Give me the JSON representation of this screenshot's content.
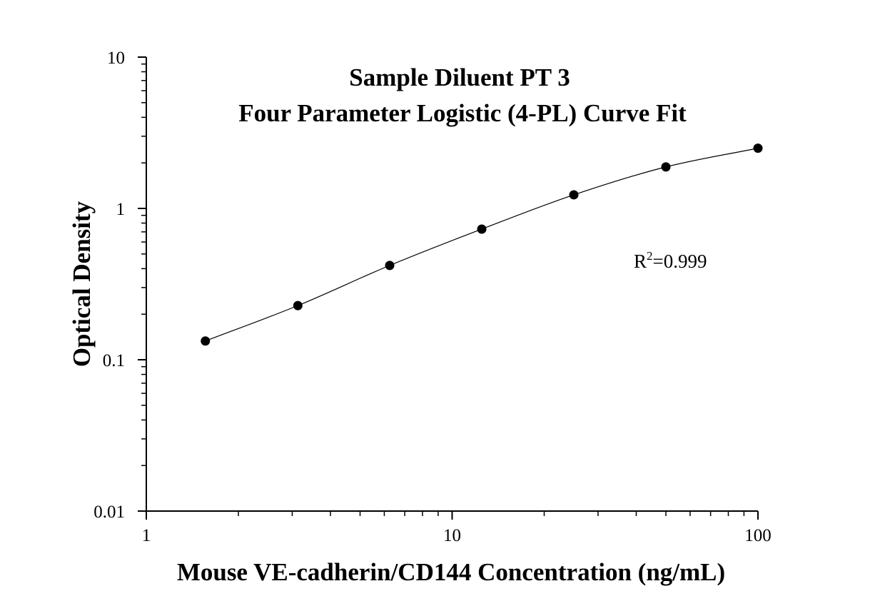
{
  "chart_data": {
    "type": "scatter",
    "title_lines": [
      "Sample Diluent PT 3",
      "Four Parameter Logistic (4-PL) Curve Fit"
    ],
    "xlabel": "Mouse VE-cadherin/CD144 Concentration (ng/mL)",
    "ylabel": "Optical Density",
    "x_scale": "log",
    "y_scale": "log",
    "xlim": [
      1,
      100
    ],
    "ylim": [
      0.01,
      10
    ],
    "x_ticks": [
      {
        "value": 1,
        "label": "1"
      },
      {
        "value": 10,
        "label": "10"
      },
      {
        "value": 100,
        "label": "100"
      }
    ],
    "y_ticks": [
      {
        "value": 0.01,
        "label": "0.01"
      },
      {
        "value": 0.1,
        "label": "0.1"
      },
      {
        "value": 1,
        "label": "1"
      },
      {
        "value": 10,
        "label": "10"
      }
    ],
    "grid": false,
    "series": [
      {
        "x": [
          1.56,
          3.13,
          6.25,
          12.5,
          25,
          50,
          100
        ],
        "y": [
          0.133,
          0.228,
          0.42,
          0.73,
          1.23,
          1.88,
          2.5
        ],
        "marker_color": "#000000",
        "fit": "4-PL curve"
      }
    ],
    "annotation": {
      "base": "R",
      "superscript": "2",
      "text": "=0.999"
    }
  }
}
